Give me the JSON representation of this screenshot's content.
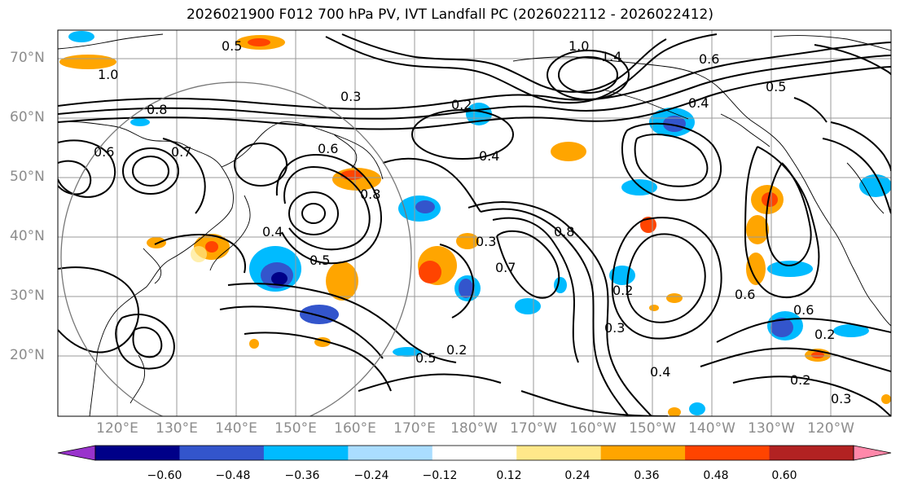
{
  "title": "2026021900 F012 700 hPa PV, IVT Landfall PC (2026022112 - 2026022412)",
  "axes": {
    "lat_labels": [
      "70°N",
      "60°N",
      "50°N",
      "40°N",
      "30°N",
      "20°N"
    ],
    "lon_labels": [
      "120°E",
      "130°E",
      "140°E",
      "150°E",
      "160°E",
      "170°E",
      "180°W",
      "170°W",
      "160°W",
      "150°W",
      "140°W",
      "130°W",
      "120°W"
    ]
  },
  "contour_labels": [
    "1.0",
    "0.8",
    "0.7",
    "0.6",
    "0.5",
    "0.4",
    "0.3",
    "0.2",
    "0.6",
    "0.5",
    "0.8",
    "0.7",
    "0.4",
    "0.3",
    "0.2",
    "1.0",
    "1.4",
    "0.6",
    "0.5",
    "0.4",
    "0.8",
    "0.6",
    "0.2",
    "0.3",
    "0.5",
    "0.2",
    "0.3",
    "0.2",
    "0.6",
    "0.4"
  ],
  "colorbar": {
    "colors": [
      "#9933cc",
      "#000088",
      "#3355cc",
      "#00bbff",
      "#aaddff",
      "#ffffff",
      "#ffe88a",
      "#ffa500",
      "#ff4400",
      "#b22222",
      "#ff88aa"
    ],
    "tick_labels": [
      "−0.60",
      "−0.48",
      "−0.36",
      "−0.24",
      "−0.12",
      "0.12",
      "0.24",
      "0.36",
      "0.48",
      "0.60"
    ]
  }
}
